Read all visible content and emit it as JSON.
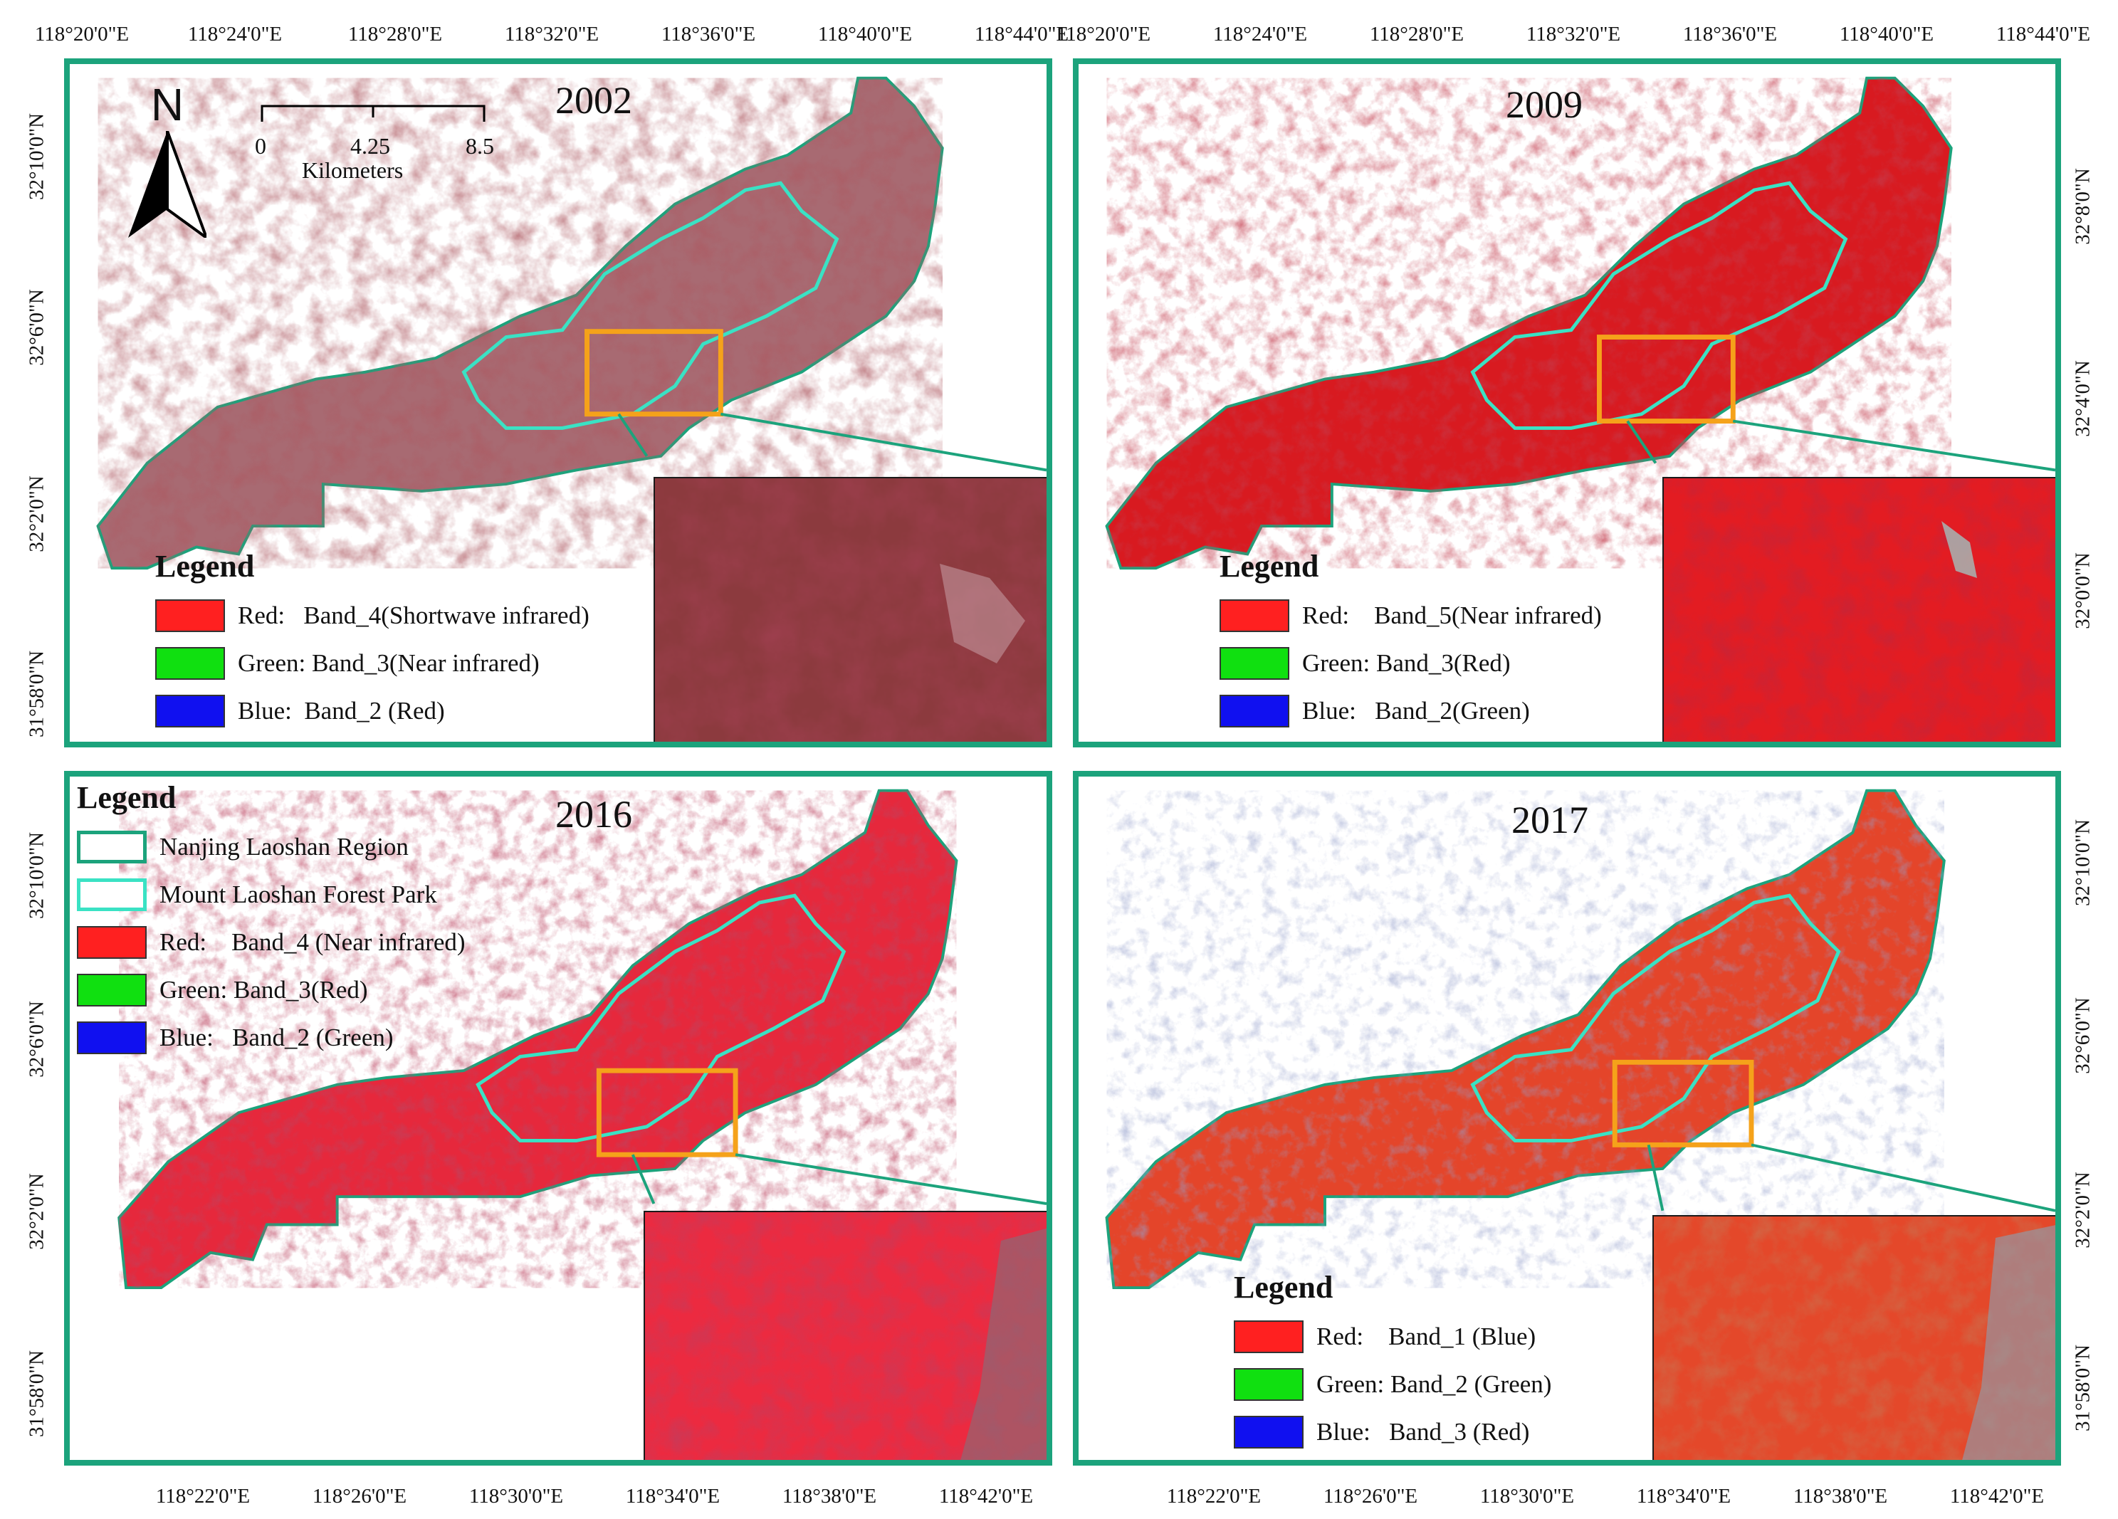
{
  "colors": {
    "frame": "#1ca37c",
    "region_outline": "#1ca37c",
    "park_outline": "#3ae2c4",
    "zoom_box": "#f5a21a",
    "legend_red": "#ff2020",
    "legend_green": "#10e010",
    "legend_blue": "#1010f0"
  },
  "axes": {
    "top_left": [
      "118°20'0\"E",
      "118°24'0\"E",
      "118°28'0\"E",
      "118°32'0\"E",
      "118°36'0\"E",
      "118°40'0\"E",
      "118°44'0\"E"
    ],
    "top_right": [
      "118°20'0\"E",
      "118°24'0\"E",
      "118°28'0\"E",
      "118°32'0\"E",
      "118°36'0\"E",
      "118°40'0\"E",
      "118°44'0\"E"
    ],
    "bottom_left": [
      "118°22'0\"E",
      "118°26'0\"E",
      "118°30'0\"E",
      "118°34'0\"E",
      "118°38'0\"E",
      "118°42'0\"E"
    ],
    "bottom_right": [
      "118°22'0\"E",
      "118°26'0\"E",
      "118°30'0\"E",
      "118°34'0\"E",
      "118°38'0\"E",
      "118°42'0\"E"
    ],
    "left_top": [
      "32°10'0\"N",
      "32°6'0\"N",
      "32°2'0\"N",
      "31°58'0\"N"
    ],
    "right_top": [
      "32°8'0\"N",
      "32°4'0\"N",
      "32°0'0\"N"
    ],
    "left_bottom": [
      "32°10'0\"N",
      "32°6'0\"N",
      "32°2'0\"N",
      "31°58'0\"N"
    ],
    "right_bottom": [
      "32°10'0\"N",
      "32°6'0\"N",
      "32°2'0\"N",
      "31°58'0\"N"
    ]
  },
  "north_arrow": {
    "label": "N"
  },
  "scale_bar": {
    "ticks": [
      "0",
      "4.25",
      "8.5"
    ],
    "unit": "Kilometers"
  },
  "panels": {
    "p2002": {
      "year": "2002",
      "legend": {
        "title": "Legend",
        "items": [
          {
            "color": "#ff2020",
            "label": "Red:   Band_4(Shortwave infrared)"
          },
          {
            "color": "#10e010",
            "label": "Green: Band_3(Near infrared)"
          },
          {
            "color": "#1010f0",
            "label": "Blue:  Band_2 (Red)"
          }
        ]
      }
    },
    "p2009": {
      "year": "2009",
      "legend": {
        "title": "Legend",
        "items": [
          {
            "color": "#ff2020",
            "label": "Red:    Band_5(Near infrared)"
          },
          {
            "color": "#10e010",
            "label": "Green: Band_3(Red)"
          },
          {
            "color": "#1010f0",
            "label": "Blue:   Band_2(Green)"
          }
        ]
      }
    },
    "p2016": {
      "year": "2016",
      "legend": {
        "title": "Legend",
        "items": [
          {
            "type": "outline",
            "label": "Nanjing Laoshan Region"
          },
          {
            "type": "outline2",
            "label": "Mount Laoshan Forest Park"
          },
          {
            "color": "#ff2020",
            "label": "Red:    Band_4 (Near infrared)"
          },
          {
            "color": "#10e010",
            "label": "Green: Band_3(Red)"
          },
          {
            "color": "#1010f0",
            "label": "Blue:   Band_2 (Green)"
          }
        ]
      }
    },
    "p2017": {
      "year": "2017",
      "legend": {
        "title": "Legend",
        "items": [
          {
            "color": "#ff2020",
            "label": "Red:    Band_1 (Blue)"
          },
          {
            "color": "#10e010",
            "label": "Green: Band_2 (Green)"
          },
          {
            "color": "#1010f0",
            "label": "Blue:   Band_3 (Red)"
          }
        ]
      }
    }
  },
  "imagery": {
    "p2002": {
      "base": "#a86a72",
      "dark": "#6b1a1e",
      "light": "#d8a8b0"
    },
    "p2009": {
      "base": "#d81a20",
      "dark": "#a80e14",
      "light": "#ff3a40"
    },
    "p2016": {
      "base": "#e6283c",
      "dark": "#a81024",
      "light": "#ff5060"
    },
    "p2017": {
      "base": "#e4452a",
      "dark": "#b22a18",
      "light": "#ff6a40"
    }
  }
}
